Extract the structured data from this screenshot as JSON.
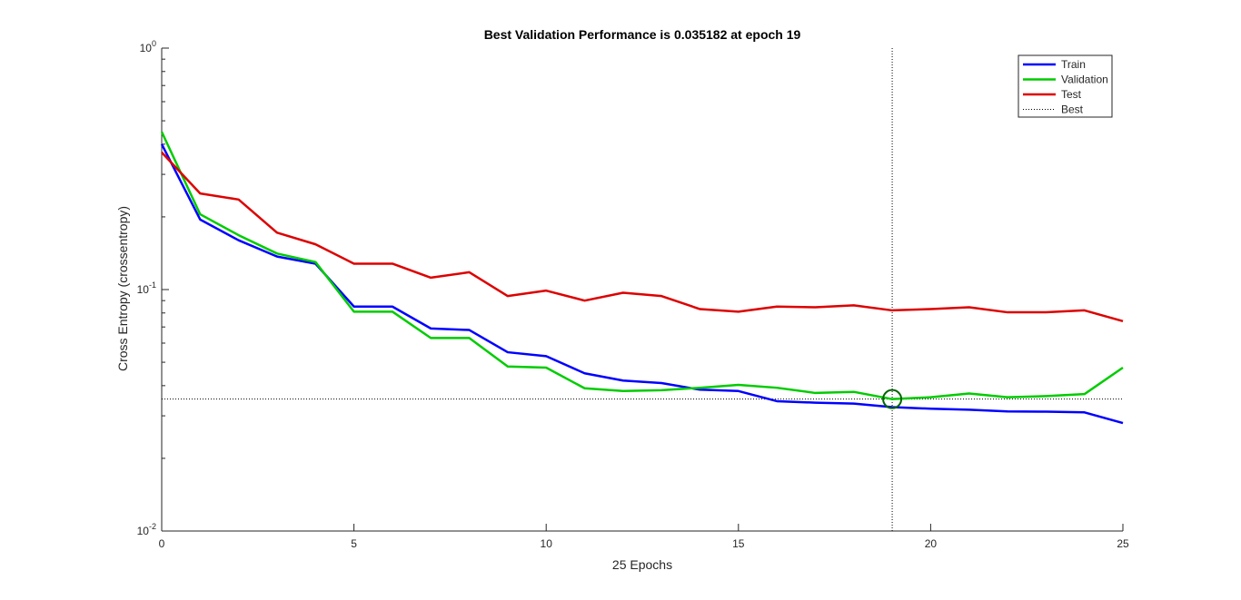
{
  "chart_data": {
    "type": "line",
    "title": "Best Validation Performance is 0.035182 at epoch 19",
    "xlabel": "25 Epochs",
    "ylabel": "Cross Entropy  (crossentropy)",
    "xlim": [
      0,
      25
    ],
    "ylim": [
      0.01,
      1
    ],
    "yscale": "log",
    "grid": false,
    "legend_position": "top-right",
    "x_ticks": [
      0,
      5,
      10,
      15,
      20,
      25
    ],
    "x_tick_labels": [
      "0",
      "5",
      "10",
      "15",
      "20",
      "25"
    ],
    "y_ticks": [
      0.01,
      0.1,
      1
    ],
    "y_tick_labels": [
      {
        "base": "10",
        "exp": "-2"
      },
      {
        "base": "10",
        "exp": "-1"
      },
      {
        "base": "10",
        "exp": "0"
      }
    ],
    "x": [
      0,
      1,
      2,
      3,
      4,
      5,
      6,
      7,
      8,
      9,
      10,
      11,
      12,
      13,
      14,
      15,
      16,
      17,
      18,
      19,
      20,
      21,
      22,
      23,
      24,
      25
    ],
    "series": [
      {
        "name": "Train",
        "color": "#0000ff",
        "values": [
          0.4,
          0.195,
          0.16,
          0.137,
          0.128,
          0.085,
          0.085,
          0.069,
          0.068,
          0.055,
          0.053,
          0.045,
          0.042,
          0.041,
          0.0385,
          0.038,
          0.0345,
          0.034,
          0.0337,
          0.0326,
          0.0321,
          0.0318,
          0.0313,
          0.0312,
          0.031,
          0.028
        ]
      },
      {
        "name": "Validation",
        "color": "#00cc00",
        "values": [
          0.45,
          0.205,
          0.168,
          0.141,
          0.13,
          0.081,
          0.081,
          0.063,
          0.063,
          0.048,
          0.0475,
          0.039,
          0.038,
          0.0383,
          0.0392,
          0.0403,
          0.0392,
          0.0373,
          0.0377,
          0.035182,
          0.0358,
          0.0371,
          0.0358,
          0.0362,
          0.0369,
          0.0475
        ]
      },
      {
        "name": "Test",
        "color": "#dd0000",
        "values": [
          0.37,
          0.25,
          0.236,
          0.172,
          0.154,
          0.128,
          0.128,
          0.112,
          0.118,
          0.094,
          0.099,
          0.09,
          0.097,
          0.094,
          0.083,
          0.081,
          0.085,
          0.0845,
          0.086,
          0.082,
          0.083,
          0.0845,
          0.0805,
          0.0805,
          0.082,
          0.074
        ]
      }
    ],
    "best": {
      "name": "Best",
      "epoch": 19,
      "value": 0.035182,
      "color": "#000000",
      "marker_color": "#006600"
    }
  }
}
